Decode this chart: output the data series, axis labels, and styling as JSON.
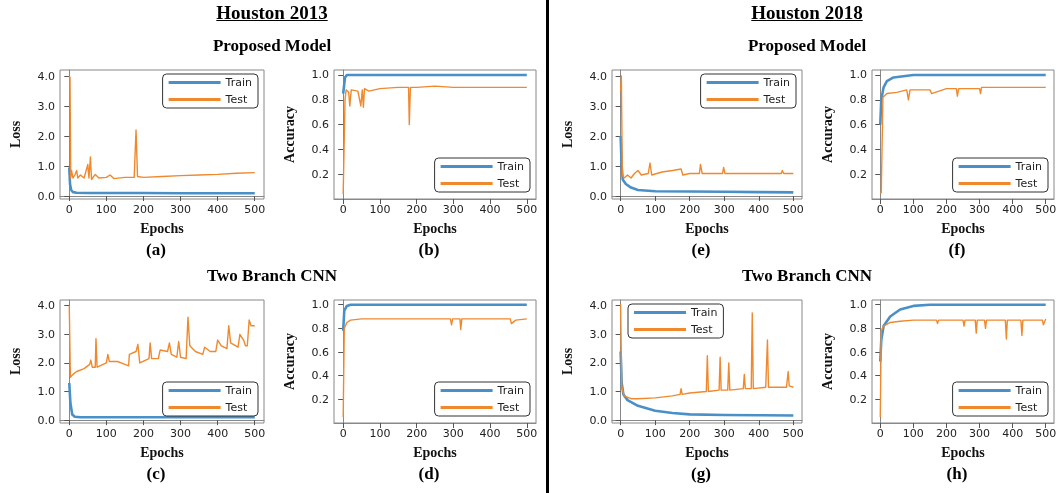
{
  "chart_data": [
    {
      "type": "line",
      "annotations": [
        "Houston 2013",
        "Proposed Model",
        "(a)"
      ],
      "xlabel": "Epochs",
      "ylabel": "Loss",
      "xlim": [
        -25,
        525
      ],
      "xticks": [
        0,
        100,
        200,
        300,
        400,
        500
      ],
      "ylim": [
        -0.1,
        4.2
      ],
      "yticks": [
        {
          "value": 0,
          "label": "0.0"
        },
        {
          "value": 1,
          "label": "1.0"
        },
        {
          "value": 2,
          "label": "2.0"
        },
        {
          "value": 3,
          "label": "3.0"
        },
        {
          "value": 4,
          "label": "4.0"
        }
      ],
      "legend": "top right",
      "series": [
        {
          "name": "Train",
          "color": "#4a90c8",
          "x": [
            0,
            2,
            5,
            10,
            20,
            50,
            100,
            200,
            300,
            400,
            500
          ],
          "values": [
            0.95,
            0.4,
            0.2,
            0.13,
            0.11,
            0.1,
            0.1,
            0.1,
            0.09,
            0.09,
            0.09
          ]
        },
        {
          "name": "Test",
          "color": "#f0892e",
          "x": [
            0,
            2,
            4,
            6,
            10,
            15,
            20,
            23,
            30,
            40,
            50,
            53,
            57,
            60,
            70,
            80,
            100,
            110,
            120,
            150,
            175,
            180,
            184,
            200,
            250,
            300,
            350,
            400,
            450,
            500
          ],
          "values": [
            4.0,
            3.95,
            0.6,
            0.85,
            0.6,
            0.7,
            0.85,
            0.6,
            0.7,
            0.6,
            1.05,
            0.6,
            1.3,
            0.55,
            0.72,
            0.6,
            0.62,
            0.7,
            0.58,
            0.62,
            0.62,
            2.2,
            0.65,
            0.62,
            0.65,
            0.68,
            0.7,
            0.72,
            0.76,
            0.78
          ]
        }
      ]
    },
    {
      "type": "line",
      "annotations": [
        "(b)"
      ],
      "xlabel": "Epochs",
      "ylabel": "Accuracy",
      "xlim": [
        -25,
        525
      ],
      "xticks": [
        0,
        100,
        200,
        300,
        400,
        500
      ],
      "ylim": [
        0,
        1.04
      ],
      "yticks": [
        0.2,
        0.4,
        0.6,
        0.8,
        {
          "value": 1,
          "label": "1.0"
        }
      ],
      "legend": "bottom right",
      "series": [
        {
          "name": "Train",
          "color": "#4a90c8",
          "x": [
            0,
            5,
            10,
            500
          ],
          "values": [
            0.85,
            0.98,
            1.0,
            1.0
          ]
        },
        {
          "name": "Test",
          "color": "#f0892e",
          "x": [
            0,
            5,
            8,
            15,
            18,
            22,
            40,
            48,
            52,
            55,
            58,
            70,
            100,
            150,
            178,
            180,
            183,
            200,
            250,
            300,
            400,
            500
          ],
          "values": [
            0.04,
            0.8,
            0.88,
            0.86,
            0.75,
            0.88,
            0.87,
            0.75,
            0.88,
            0.74,
            0.89,
            0.87,
            0.89,
            0.9,
            0.9,
            0.6,
            0.9,
            0.9,
            0.91,
            0.9,
            0.9,
            0.9
          ]
        }
      ]
    },
    {
      "type": "line",
      "annotations": [
        "Two Branch CNN",
        "(c)"
      ],
      "xlabel": "Epochs",
      "ylabel": "Loss",
      "xlim": [
        -25,
        525
      ],
      "xticks": [
        0,
        100,
        200,
        300,
        400,
        500
      ],
      "ylim": [
        -0.1,
        4.2
      ],
      "yticks": [
        {
          "value": 0,
          "label": "0.0"
        },
        {
          "value": 1,
          "label": "1.0"
        },
        {
          "value": 2,
          "label": "2.0"
        },
        {
          "value": 3,
          "label": "3.0"
        },
        {
          "value": 4,
          "label": "4.0"
        }
      ],
      "legend": "bottom right",
      "series": [
        {
          "name": "Train",
          "color": "#4a90c8",
          "x": [
            0,
            3,
            8,
            15,
            30,
            500
          ],
          "values": [
            1.3,
            0.6,
            0.2,
            0.12,
            0.1,
            0.1
          ]
        },
        {
          "name": "Test",
          "color": "#f0892e",
          "x": [
            0,
            3,
            10,
            20,
            40,
            55,
            58,
            62,
            70,
            72,
            75,
            100,
            104,
            108,
            130,
            150,
            160,
            162,
            180,
            185,
            190,
            215,
            218,
            222,
            240,
            245,
            265,
            270,
            275,
            290,
            295,
            300,
            315,
            320,
            325,
            340,
            360,
            365,
            380,
            395,
            400,
            410,
            425,
            430,
            435,
            455,
            460,
            470,
            475,
            480,
            485,
            490,
            500
          ],
          "values": [
            4.0,
            1.5,
            1.6,
            1.7,
            1.8,
            1.95,
            2.1,
            1.85,
            1.85,
            2.85,
            1.85,
            2.0,
            2.3,
            2.05,
            2.05,
            1.95,
            1.9,
            2.3,
            2.4,
            2.65,
            2.0,
            2.15,
            2.7,
            2.15,
            2.15,
            2.45,
            2.4,
            2.7,
            2.3,
            2.2,
            2.75,
            2.2,
            2.15,
            3.6,
            2.6,
            2.4,
            2.3,
            2.55,
            2.4,
            2.4,
            2.8,
            2.6,
            2.5,
            3.3,
            2.7,
            2.55,
            3.0,
            2.8,
            2.6,
            2.6,
            3.5,
            3.3,
            3.3
          ]
        }
      ]
    },
    {
      "type": "line",
      "annotations": [
        "(d)"
      ],
      "xlabel": "Epochs",
      "ylabel": "Accuracy",
      "xlim": [
        -25,
        525
      ],
      "xticks": [
        0,
        100,
        200,
        300,
        400,
        500
      ],
      "ylim": [
        0,
        1.04
      ],
      "yticks": [
        0.2,
        0.4,
        0.6,
        0.8,
        {
          "value": 1,
          "label": "1.0"
        }
      ],
      "legend": "bottom right",
      "series": [
        {
          "name": "Train",
          "color": "#4a90c8",
          "x": [
            0,
            3,
            10,
            20,
            500
          ],
          "values": [
            0.78,
            0.95,
            0.99,
            1.0,
            1.0
          ]
        },
        {
          "name": "Test",
          "color": "#f0892e",
          "x": [
            0,
            3,
            10,
            20,
            50,
            100,
            150,
            200,
            250,
            292,
            295,
            298,
            318,
            320,
            323,
            400,
            455,
            458,
            470,
            500
          ],
          "values": [
            0.05,
            0.8,
            0.85,
            0.87,
            0.88,
            0.88,
            0.88,
            0.88,
            0.88,
            0.88,
            0.83,
            0.88,
            0.88,
            0.79,
            0.88,
            0.88,
            0.88,
            0.84,
            0.87,
            0.88
          ]
        }
      ]
    },
    {
      "type": "line",
      "annotations": [
        "Houston 2018",
        "Proposed Model",
        "(e)"
      ],
      "xlabel": "Epochs",
      "ylabel": "Loss",
      "xlim": [
        -25,
        525
      ],
      "xticks": [
        0,
        100,
        200,
        300,
        400,
        500
      ],
      "ylim": [
        -0.1,
        4.2
      ],
      "yticks": [
        {
          "value": 0,
          "label": "0.0"
        },
        {
          "value": 1,
          "label": "1.0"
        },
        {
          "value": 2,
          "label": "2.0"
        },
        {
          "value": 3,
          "label": "3.0"
        },
        {
          "value": 4,
          "label": "4.0"
        }
      ],
      "legend": "top right",
      "series": [
        {
          "name": "Train",
          "color": "#4a90c8",
          "x": [
            0,
            3,
            6,
            15,
            30,
            50,
            100,
            200,
            300,
            400,
            500
          ],
          "values": [
            2.0,
            1.0,
            0.55,
            0.4,
            0.28,
            0.2,
            0.16,
            0.15,
            0.14,
            0.13,
            0.12
          ]
        },
        {
          "name": "Test",
          "color": "#f0892e",
          "x": [
            0,
            2,
            5,
            10,
            20,
            30,
            40,
            50,
            60,
            80,
            85,
            90,
            120,
            150,
            175,
            180,
            200,
            228,
            231,
            236,
            260,
            295,
            298,
            302,
            350,
            400,
            465,
            468,
            472,
            500
          ],
          "values": [
            3.5,
            4.0,
            0.7,
            0.6,
            0.7,
            0.6,
            0.75,
            0.85,
            0.7,
            0.75,
            1.1,
            0.7,
            0.8,
            0.85,
            0.9,
            0.7,
            0.75,
            0.75,
            1.05,
            0.75,
            0.75,
            0.75,
            0.95,
            0.75,
            0.75,
            0.75,
            0.75,
            0.85,
            0.75,
            0.75
          ]
        }
      ]
    },
    {
      "type": "line",
      "annotations": [
        "(f)"
      ],
      "xlabel": "Epochs",
      "ylabel": "Accuracy",
      "xlim": [
        -25,
        525
      ],
      "xticks": [
        0,
        100,
        200,
        300,
        400,
        500
      ],
      "ylim": [
        0,
        1.04
      ],
      "yticks": [
        0.2,
        0.4,
        0.6,
        0.8,
        {
          "value": 1,
          "label": "1.0"
        }
      ],
      "legend": "bottom right",
      "series": [
        {
          "name": "Train",
          "color": "#4a90c8",
          "x": [
            0,
            3,
            10,
            20,
            40,
            70,
            100,
            500
          ],
          "values": [
            0.6,
            0.8,
            0.9,
            0.95,
            0.98,
            0.99,
            1.0,
            1.0
          ]
        },
        {
          "name": "Test",
          "color": "#f0892e",
          "x": [
            0,
            3,
            8,
            20,
            50,
            80,
            85,
            90,
            150,
            155,
            200,
            230,
            233,
            237,
            300,
            303,
            306,
            400,
            500
          ],
          "values": [
            0.05,
            0.05,
            0.82,
            0.85,
            0.86,
            0.88,
            0.8,
            0.88,
            0.88,
            0.85,
            0.89,
            0.89,
            0.83,
            0.89,
            0.89,
            0.85,
            0.9,
            0.9,
            0.9
          ]
        }
      ]
    },
    {
      "type": "line",
      "annotations": [
        "Two Branch CNN",
        "(g)"
      ],
      "xlabel": "Epochs",
      "ylabel": "Loss",
      "xlim": [
        -25,
        525
      ],
      "xticks": [
        0,
        100,
        200,
        300,
        400,
        500
      ],
      "ylim": [
        -0.1,
        4.2
      ],
      "yticks": [
        {
          "value": 0,
          "label": "0.0"
        },
        {
          "value": 1,
          "label": "1.0"
        },
        {
          "value": 2,
          "label": "2.0"
        },
        {
          "value": 3,
          "label": "3.0"
        },
        {
          "value": 4,
          "label": "4.0"
        }
      ],
      "legend": "top left",
      "series": [
        {
          "name": "Train",
          "color": "#4a90c8",
          "x": [
            0,
            3,
            8,
            20,
            50,
            100,
            150,
            200,
            300,
            400,
            500
          ],
          "values": [
            2.4,
            1.3,
            0.9,
            0.7,
            0.5,
            0.33,
            0.25,
            0.2,
            0.18,
            0.17,
            0.16
          ]
        },
        {
          "name": "Test",
          "color": "#f0892e",
          "x": [
            0,
            3,
            10,
            30,
            50,
            100,
            150,
            172,
            175,
            178,
            200,
            248,
            251,
            254,
            285,
            288,
            291,
            310,
            313,
            316,
            355,
            358,
            361,
            378,
            381,
            384,
            420,
            425,
            428,
            480,
            485,
            488,
            500
          ],
          "values": [
            4.05,
            1.2,
            0.85,
            0.75,
            0.75,
            0.78,
            0.85,
            0.9,
            1.1,
            0.9,
            0.95,
            1.0,
            2.25,
            1.0,
            1.05,
            2.2,
            1.05,
            1.05,
            2.0,
            1.05,
            1.1,
            1.6,
            1.1,
            1.1,
            3.75,
            1.1,
            1.15,
            2.8,
            1.15,
            1.15,
            1.7,
            1.2,
            1.15
          ]
        }
      ]
    },
    {
      "type": "line",
      "annotations": [
        "(h)"
      ],
      "xlabel": "Epochs",
      "ylabel": "Accuracy",
      "xlim": [
        -25,
        525
      ],
      "xticks": [
        0,
        100,
        200,
        300,
        400,
        500
      ],
      "ylim": [
        0,
        1.04
      ],
      "yticks": [
        0.2,
        0.4,
        0.6,
        0.8,
        {
          "value": 1,
          "label": "1.0"
        }
      ],
      "legend": "bottom right",
      "series": [
        {
          "name": "Train",
          "color": "#4a90c8",
          "x": [
            0,
            3,
            10,
            30,
            60,
            100,
            150,
            500
          ],
          "values": [
            0.52,
            0.7,
            0.82,
            0.9,
            0.96,
            0.99,
            1.0,
            1.0
          ]
        },
        {
          "name": "Test",
          "color": "#f0892e",
          "x": [
            0,
            3,
            10,
            30,
            60,
            100,
            170,
            173,
            176,
            250,
            253,
            256,
            287,
            290,
            293,
            315,
            318,
            321,
            378,
            381,
            384,
            425,
            428,
            431,
            490,
            493,
            500
          ],
          "values": [
            0.05,
            0.78,
            0.82,
            0.85,
            0.86,
            0.87,
            0.87,
            0.84,
            0.87,
            0.87,
            0.82,
            0.87,
            0.87,
            0.76,
            0.87,
            0.87,
            0.8,
            0.87,
            0.87,
            0.71,
            0.87,
            0.87,
            0.74,
            0.87,
            0.87,
            0.83,
            0.88
          ]
        }
      ]
    }
  ]
}
